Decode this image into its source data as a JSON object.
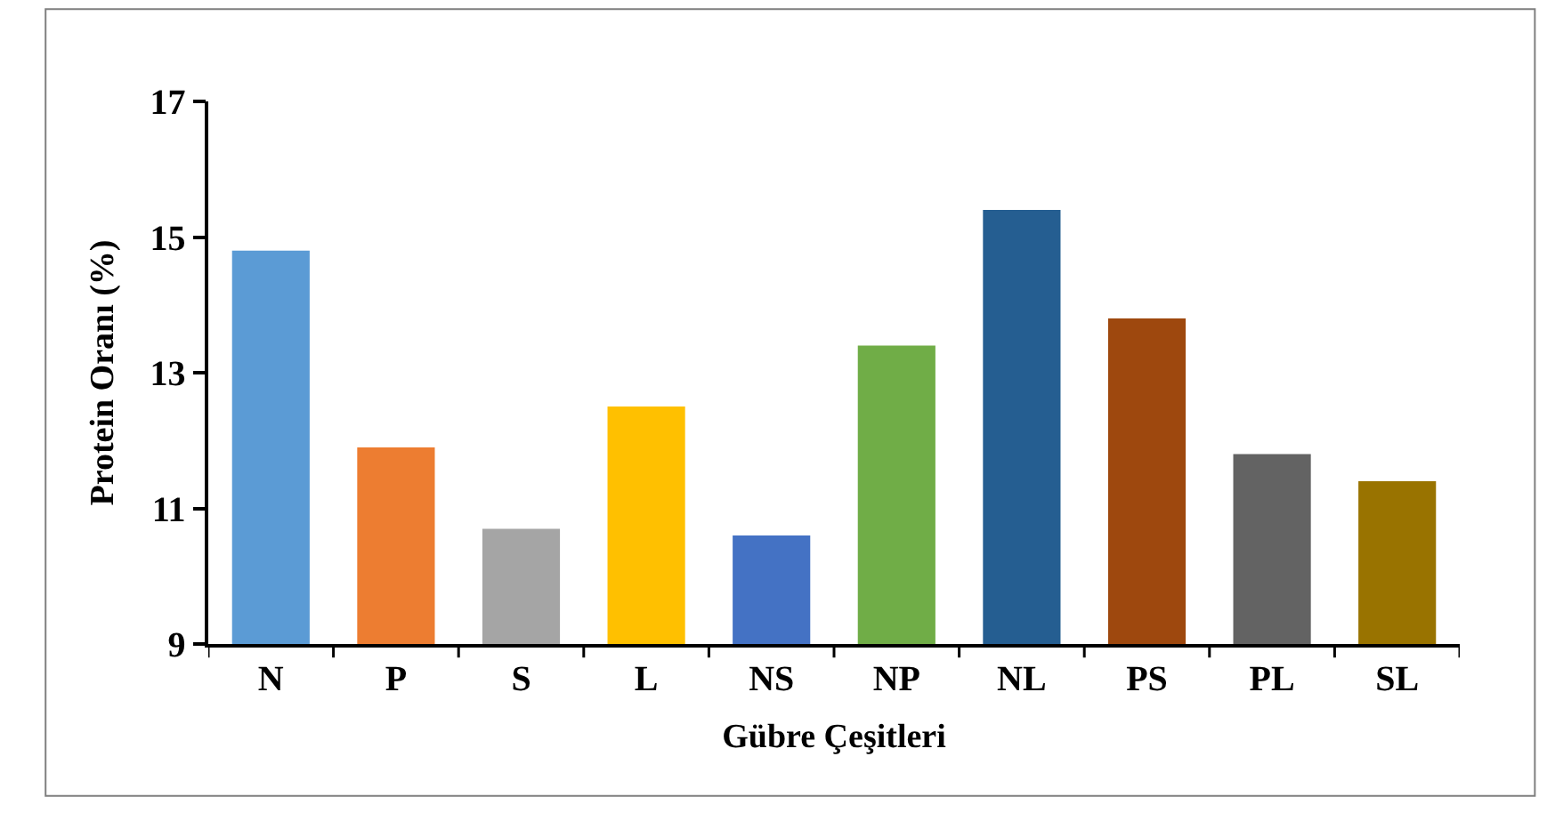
{
  "chart_data": {
    "type": "bar",
    "xlabel": "Gübre Çeşitleri",
    "ylabel": "Protein Oranı (%)",
    "categories": [
      "N",
      "P",
      "S",
      "L",
      "NS",
      "NP",
      "NL",
      "PS",
      "PL",
      "SL"
    ],
    "values": [
      14.8,
      11.9,
      10.7,
      12.5,
      10.6,
      13.4,
      15.4,
      13.8,
      11.8,
      11.4
    ],
    "colors": [
      "#5b9bd5",
      "#ed7d31",
      "#a5a5a5",
      "#ffc000",
      "#4472c4",
      "#70ad47",
      "#255e91",
      "#9e480e",
      "#636363",
      "#997300"
    ],
    "ylim": [
      9,
      17
    ],
    "yticks": [
      9,
      11,
      13,
      15,
      17
    ]
  }
}
